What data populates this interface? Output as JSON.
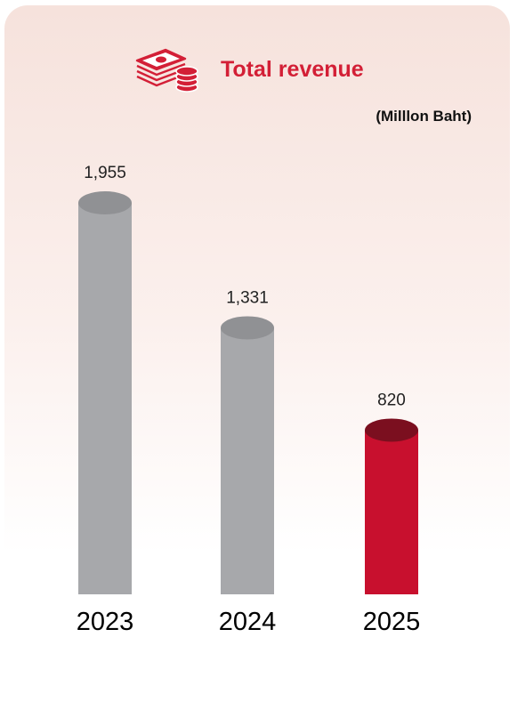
{
  "chart_data": {
    "type": "bar",
    "title": "Total revenue",
    "subtitle": "(Milllon Baht)",
    "categories": [
      "2023",
      "2024",
      "2025"
    ],
    "values": [
      1955,
      1331,
      820
    ],
    "ylim": [
      0,
      1955
    ],
    "grid": false,
    "colors": {
      "default_bar": "#a7a8ab",
      "default_cap": "#909194",
      "highlight_bar": "#c8102e",
      "highlight_cap": "#7b0f1f",
      "title": "#d31f36"
    },
    "highlight_index": 2,
    "icon": "money-stack-icon"
  }
}
